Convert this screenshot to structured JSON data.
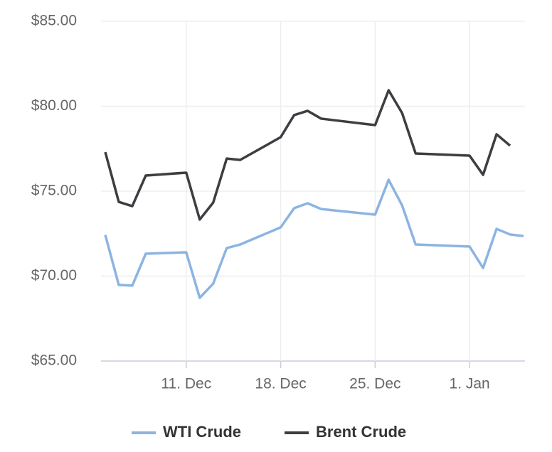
{
  "chart_data": {
    "type": "line",
    "x": [
      "5. Dec",
      "6. Dec",
      "7. Dec",
      "8. Dec",
      "11. Dec",
      "12. Dec",
      "13. Dec",
      "14. Dec",
      "15. Dec",
      "18. Dec",
      "19. Dec",
      "20. Dec",
      "21. Dec",
      "25. Dec",
      "26. Dec",
      "27. Dec",
      "28. Dec",
      "1. Jan",
      "2. Jan",
      "3. Jan",
      "4. Jan",
      "5. Jan"
    ],
    "series": [
      {
        "name": "WTI Crude",
        "color": "#8cb4e2",
        "values": [
          72.42,
          69.48,
          69.44,
          71.32,
          71.4,
          68.72,
          69.56,
          71.65,
          71.86,
          72.87,
          74.0,
          74.29,
          73.95,
          73.62,
          75.67,
          74.16,
          71.86,
          71.74,
          70.48,
          72.78,
          72.45,
          72.36
        ]
      },
      {
        "name": "Brent Crude",
        "color": "#3d3d42",
        "values": [
          77.3,
          74.37,
          74.12,
          75.92,
          76.09,
          73.33,
          74.33,
          76.92,
          76.84,
          78.18,
          79.48,
          79.73,
          79.27,
          78.89,
          80.94,
          79.6,
          77.22,
          77.09,
          75.96,
          78.35,
          77.68,
          null
        ]
      }
    ],
    "xlim": [
      "5. Dec",
      "5. Jan"
    ],
    "xticks": [
      "11. Dec",
      "18. Dec",
      "25. Dec",
      "1. Jan"
    ],
    "ylim": [
      65,
      85
    ],
    "yticks": [
      {
        "value": 65,
        "label": "$65.00"
      },
      {
        "value": 70,
        "label": "$70.00"
      },
      {
        "value": 75,
        "label": "$75.00"
      },
      {
        "value": 80,
        "label": "$80.00"
      },
      {
        "value": 85,
        "label": "$85.00"
      }
    ],
    "grid": true,
    "legend": "bottom"
  }
}
